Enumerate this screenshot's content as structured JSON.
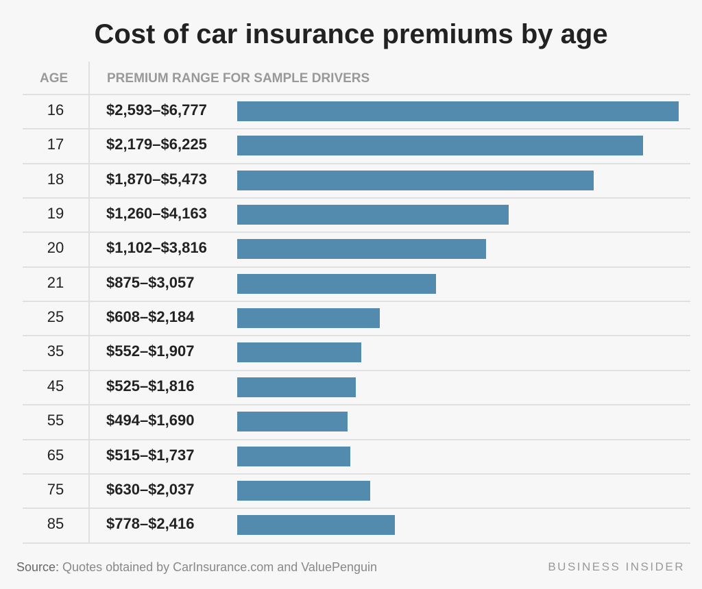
{
  "chart_data": {
    "type": "bar",
    "orientation": "horizontal",
    "title": "Cost of car insurance premiums by age",
    "column_headers": [
      "AGE",
      "PREMIUM RANGE FOR SAMPLE DRIVERS"
    ],
    "categories": [
      "16",
      "17",
      "18",
      "19",
      "20",
      "21",
      "25",
      "35",
      "45",
      "55",
      "65",
      "75",
      "85"
    ],
    "range_labels": [
      "$2,593–$6,777",
      "$2,179–$6,225",
      "$1,870–$5,473",
      "$1,260–$4,163",
      "$1,102–$3,816",
      "$875–$3,057",
      "$608–$2,184",
      "$552–$1,907",
      "$525–$1,816",
      "$494–$1,690",
      "$515–$1,737",
      "$630–$2,037",
      "$778–$2,416"
    ],
    "low": [
      2593,
      2179,
      1870,
      1260,
      1102,
      875,
      608,
      552,
      525,
      494,
      515,
      630,
      778
    ],
    "values": [
      6777,
      6225,
      5473,
      4163,
      3816,
      3057,
      2184,
      1907,
      1816,
      1690,
      1737,
      2037,
      2416
    ],
    "xlim": [
      0,
      6777
    ],
    "bar_color": "#528bae",
    "grid": false
  },
  "footer": {
    "source_label": "Source:",
    "source_text": " Quotes obtained by CarInsurance.com and ValuePenguin",
    "brand": "BUSINESS INSIDER"
  }
}
